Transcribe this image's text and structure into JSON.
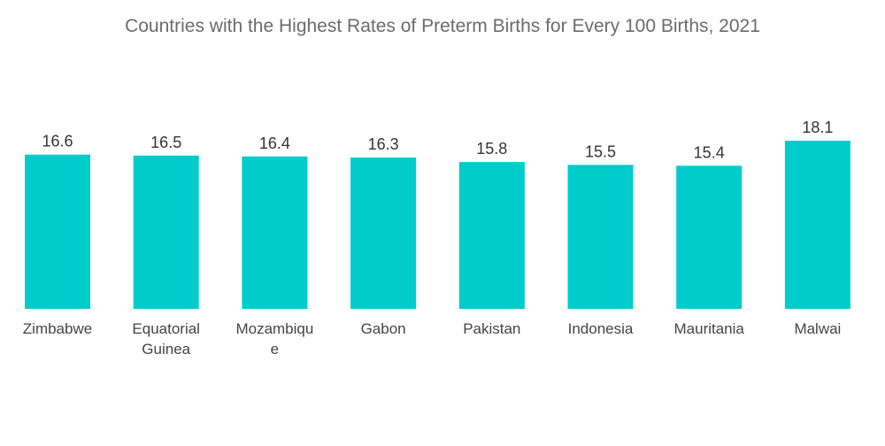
{
  "chart_data": {
    "type": "bar",
    "title": "Countries with the Highest Rates of Preterm Births for Every 100 Births, 2021",
    "xlabel": "",
    "ylabel": "",
    "ylim": [
      0,
      18.1
    ],
    "grid": false,
    "categories": [
      [
        "Zimbabwe"
      ],
      [
        "Equatorial",
        "Guinea"
      ],
      [
        "Mozambiqu",
        "e"
      ],
      [
        "Gabon"
      ],
      [
        "Pakistan"
      ],
      [
        "Indonesia"
      ],
      [
        "Mauritania"
      ],
      [
        "Malwai"
      ]
    ],
    "values": [
      16.6,
      16.5,
      16.4,
      16.3,
      15.8,
      15.5,
      15.4,
      18.1
    ],
    "value_labels": [
      "16.6",
      "16.5",
      "16.4",
      "16.3",
      "15.8",
      "15.5",
      "15.4",
      "18.1"
    ],
    "bar_color": "#00cccc"
  }
}
